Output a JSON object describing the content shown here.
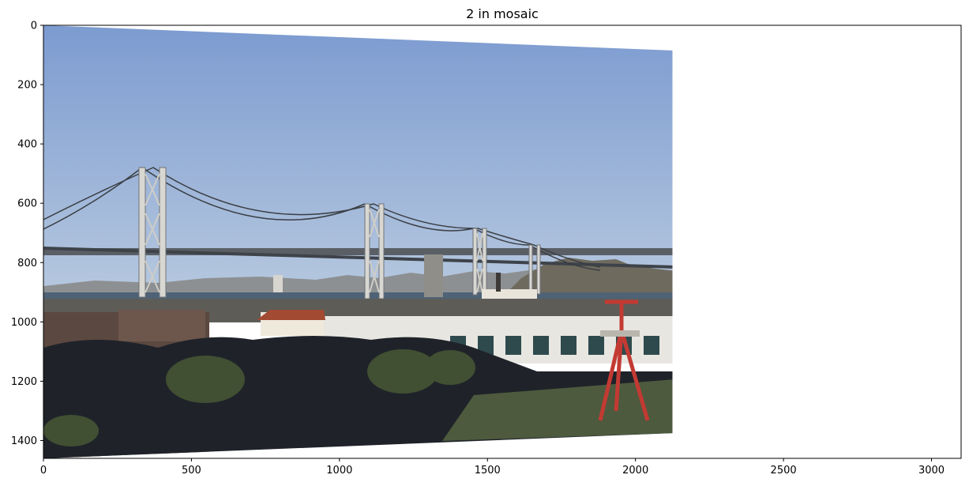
{
  "title": "2 in mosaic",
  "image": {
    "description_name": "bay-bridge-warped-photo",
    "colors": {
      "sky_top": "#7f9fd3",
      "sky_bottom": "#b7c9e0",
      "water": "#4f6276",
      "hills": "#8c8f91",
      "foreground_dark": "#1f2329",
      "bridge": "#5a5f66",
      "red_sculpture": "#c33a33",
      "ship_red": "#c9302a"
    }
  },
  "x_axis": {
    "range": [
      0,
      3100
    ],
    "ticks": [
      0,
      500,
      1000,
      1500,
      2000,
      2500,
      3000
    ],
    "tick_labels": [
      "0",
      "500",
      "1000",
      "1500",
      "2000",
      "2500",
      "3000"
    ]
  },
  "y_axis": {
    "range": [
      0,
      1460
    ],
    "inverted": true,
    "ticks": [
      0,
      200,
      400,
      600,
      800,
      1000,
      1200,
      1400
    ],
    "tick_labels": [
      "0",
      "200",
      "400",
      "600",
      "800",
      "1000",
      "1200",
      "1400"
    ]
  },
  "warped_corners_data_units": {
    "top_left": [
      0,
      0
    ],
    "top_right": [
      2125,
      85
    ],
    "bottom_right": [
      2125,
      1375
    ],
    "bottom_left": [
      0,
      1460
    ]
  }
}
